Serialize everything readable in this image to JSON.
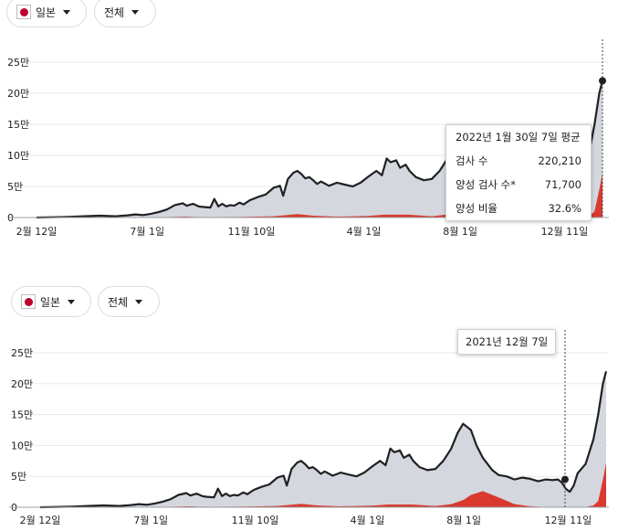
{
  "controls": {
    "country": "일본",
    "range": "전체"
  },
  "chart_data": [
    {
      "type": "area",
      "y_ticks": [
        "25만",
        "20만",
        "15만",
        "10만",
        "5만",
        "0"
      ],
      "y_tick_values": [
        250000,
        200000,
        150000,
        100000,
        50000,
        0
      ],
      "ylim": [
        0,
        250000
      ],
      "x_tick_labels": [
        "2월 12일",
        "7월 1일",
        "11월 10일",
        "4월 1일",
        "8월 1일",
        "12월 11일"
      ],
      "x_tick_days": [
        0,
        140,
        272,
        414,
        536,
        668
      ],
      "x_range_days": [
        0,
        716
      ],
      "series": [
        {
          "name": "검사 수",
          "color": "#202124",
          "fill": "#d4d7de",
          "x": [
            0,
            20,
            40,
            60,
            80,
            100,
            115,
            125,
            135,
            145,
            155,
            165,
            175,
            185,
            190,
            198,
            205,
            210,
            220,
            225,
            230,
            235,
            240,
            245,
            250,
            257,
            262,
            270,
            280,
            290,
            300,
            308,
            312,
            318,
            325,
            330,
            335,
            340,
            345,
            350,
            355,
            360,
            370,
            380,
            390,
            400,
            410,
            420,
            430,
            437,
            443,
            448,
            455,
            460,
            467,
            472,
            480,
            490,
            500,
            510,
            520,
            528,
            535,
            545,
            552,
            560,
            566,
            572,
            580,
            590,
            600,
            610,
            620,
            630,
            640,
            648,
            655,
            660,
            665,
            670,
            675,
            680,
            690,
            700,
            706,
            712,
            716
          ],
          "y": [
            0,
            500,
            1000,
            2000,
            3000,
            2000,
            3500,
            5000,
            4000,
            6000,
            9000,
            13000,
            20000,
            23000,
            19000,
            22000,
            18000,
            17000,
            16000,
            30000,
            18000,
            22000,
            18000,
            20000,
            19000,
            24000,
            21000,
            28000,
            33000,
            37000,
            48000,
            51000,
            35000,
            62000,
            72000,
            75000,
            70000,
            63000,
            65000,
            60000,
            54000,
            58000,
            51000,
            56000,
            53000,
            50000,
            56000,
            66000,
            75000,
            68000,
            95000,
            89000,
            92000,
            80000,
            85000,
            75000,
            65000,
            60000,
            62000,
            75000,
            95000,
            120000,
            135000,
            125000,
            100000,
            80000,
            70000,
            60000,
            52000,
            50000,
            45000,
            48000,
            46000,
            42000,
            45000,
            44000,
            45000,
            40000,
            30000,
            25000,
            35000,
            55000,
            70000,
            110000,
            150000,
            200000,
            220000
          ]
        },
        {
          "name": "양성 검사 수",
          "color": "#d93025",
          "fill": "#d93025",
          "x": [
            0,
            100,
            150,
            190,
            200,
            220,
            260,
            300,
            330,
            350,
            380,
            400,
            420,
            440,
            470,
            500,
            520,
            536,
            545,
            560,
            580,
            600,
            620,
            640,
            660,
            680,
            690,
            700,
            706,
            712,
            716
          ],
          "y": [
            0,
            100,
            300,
            1500,
            900,
            700,
            1000,
            2000,
            5500,
            3000,
            1500,
            2000,
            2500,
            4500,
            4500,
            2000,
            5000,
            12000,
            20000,
            26000,
            16000,
            5000,
            1500,
            500,
            200,
            100,
            300,
            3000,
            10000,
            45000,
            71700
          ]
        }
      ],
      "highlight_day": 716,
      "tooltip": {
        "title": "2022년 1월 30일 7일 평균",
        "rows": [
          {
            "label": "검사 수",
            "value": "220,210"
          },
          {
            "label": "양성 검사 수*",
            "value": "71,700"
          },
          {
            "label": "양성 비율",
            "value": "32.6%"
          }
        ]
      }
    },
    {
      "type": "area",
      "y_ticks": [
        "25만",
        "20만",
        "15만",
        "10만",
        "5만",
        "0"
      ],
      "y_tick_values": [
        250000,
        200000,
        150000,
        100000,
        50000,
        0
      ],
      "ylim": [
        0,
        250000
      ],
      "x_tick_labels": [
        "2월 12일",
        "7월 1일",
        "11월 10일",
        "4월 1일",
        "8월 1일",
        "12월 11일"
      ],
      "x_tick_days": [
        0,
        140,
        272,
        414,
        536,
        668
      ],
      "x_range_days": [
        0,
        716
      ],
      "highlight_day": 664,
      "highlight_value": 45000,
      "tooltip": {
        "title": "2021년 12월 7일",
        "rows": []
      }
    }
  ]
}
